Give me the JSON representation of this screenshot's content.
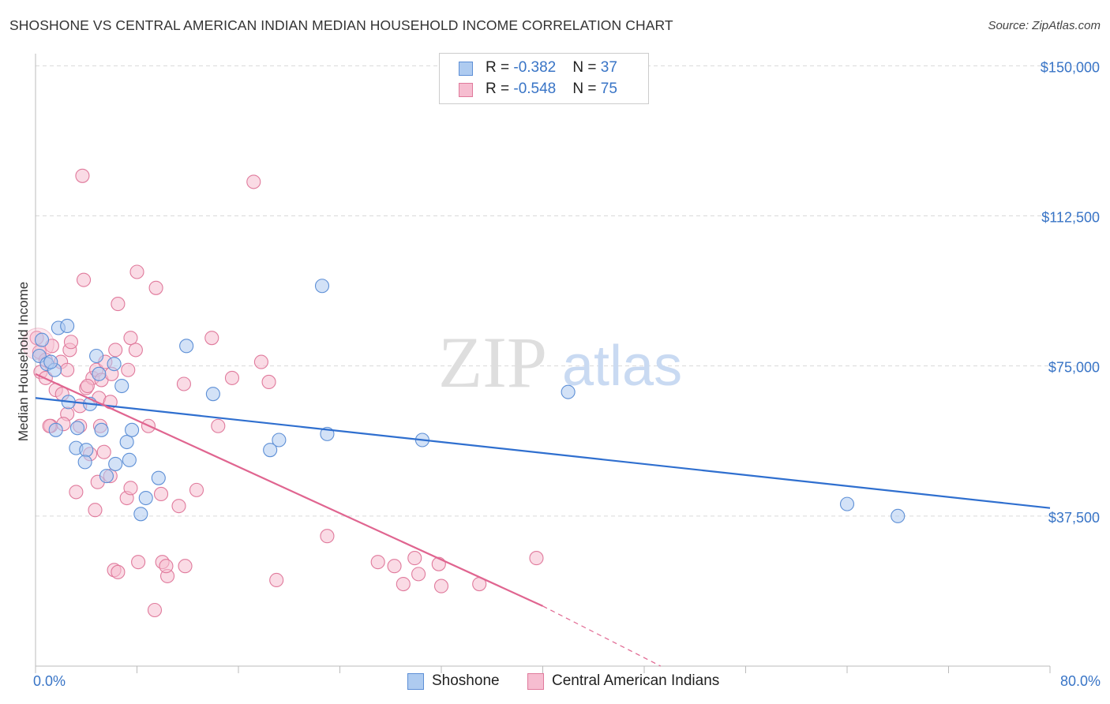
{
  "title": "SHOSHONE VS CENTRAL AMERICAN INDIAN MEDIAN HOUSEHOLD INCOME CORRELATION CHART",
  "source": "Source: ZipAtlas.com",
  "watermark": {
    "zip": "ZIP",
    "atlas": "atlas"
  },
  "legend": {
    "rows": [
      {
        "r_label": "R = ",
        "r_value": "-0.382",
        "n_label": "N = ",
        "n_value": "37"
      },
      {
        "r_label": "R = ",
        "r_value": "-0.548",
        "n_label": "N = ",
        "n_value": "75"
      }
    ]
  },
  "colors": {
    "shoshone_fill": "#aecbf0",
    "shoshone_stroke": "#5d8fd6",
    "shoshone_line": "#2f6fcf",
    "cai_fill": "#f6bdd0",
    "cai_stroke": "#e07a9c",
    "cai_line": "#e06590",
    "grid": "#d9d9d9",
    "tick_text": "#3874c6"
  },
  "chart_data": {
    "type": "scatter",
    "title": "SHOSHONE VS CENTRAL AMERICAN INDIAN MEDIAN HOUSEHOLD INCOME CORRELATION CHART",
    "xlabel": "",
    "ylabel": "Median Household Income",
    "xlim": [
      0,
      80
    ],
    "ylim": [
      0,
      155000
    ],
    "x_tick_labels": [
      "0.0%",
      "80.0%"
    ],
    "y_ticks": [
      37500,
      75000,
      112500,
      150000
    ],
    "y_tick_labels": [
      "$37,500",
      "$75,000",
      "$112,500",
      "$150,000"
    ],
    "grid": true,
    "legend_position": "top-center",
    "series": [
      {
        "name": "Shoshone",
        "r": -0.382,
        "n": 37,
        "trend": {
          "x": [
            0,
            80
          ],
          "y": [
            67000,
            39500
          ]
        },
        "points": [
          [
            0.3,
            77500
          ],
          [
            0.5,
            81500
          ],
          [
            0.9,
            75500
          ],
          [
            1.5,
            74000
          ],
          [
            1.8,
            84500
          ],
          [
            2.5,
            85000
          ],
          [
            4.8,
            77500
          ],
          [
            5.0,
            73000
          ],
          [
            6.2,
            75500
          ],
          [
            6.8,
            70000
          ],
          [
            1.6,
            59000
          ],
          [
            3.3,
            59500
          ],
          [
            5.2,
            59000
          ],
          [
            3.2,
            54500
          ],
          [
            4.0,
            54000
          ],
          [
            7.2,
            56000
          ],
          [
            7.6,
            59000
          ],
          [
            3.9,
            51000
          ],
          [
            6.3,
            50500
          ],
          [
            7.4,
            51500
          ],
          [
            5.6,
            47500
          ],
          [
            9.7,
            47000
          ],
          [
            11.9,
            80000
          ],
          [
            14.0,
            68000
          ],
          [
            18.5,
            54000
          ],
          [
            19.2,
            56500
          ],
          [
            22.6,
            95000
          ],
          [
            23.0,
            58000
          ],
          [
            30.5,
            56500
          ],
          [
            42.0,
            68500
          ],
          [
            8.7,
            42000
          ],
          [
            8.3,
            38000
          ],
          [
            64.0,
            40500
          ],
          [
            68.0,
            37500
          ],
          [
            2.6,
            66000
          ],
          [
            4.3,
            65500
          ],
          [
            1.2,
            76000
          ]
        ]
      },
      {
        "name": "Central American Indians",
        "r": -0.548,
        "n": 75,
        "trend_solid": {
          "x": [
            0,
            40
          ],
          "y": [
            73000,
            15000
          ]
        },
        "trend_dashed": {
          "x": [
            40,
            49.3
          ],
          "y": [
            15000,
            0
          ]
        },
        "points": [
          [
            0.1,
            82000
          ],
          [
            0.3,
            78500
          ],
          [
            0.4,
            73500
          ],
          [
            0.8,
            76500
          ],
          [
            1.3,
            80000
          ],
          [
            1.6,
            69000
          ],
          [
            2.0,
            76000
          ],
          [
            2.5,
            74000
          ],
          [
            2.7,
            79000
          ],
          [
            2.8,
            81000
          ],
          [
            3.5,
            65000
          ],
          [
            4.0,
            69500
          ],
          [
            4.5,
            72000
          ],
          [
            4.8,
            74000
          ],
          [
            5.2,
            71500
          ],
          [
            5.5,
            76000
          ],
          [
            6.3,
            79000
          ],
          [
            7.3,
            74000
          ],
          [
            7.5,
            82000
          ],
          [
            7.9,
            79000
          ],
          [
            5.0,
            67000
          ],
          [
            2.5,
            63000
          ],
          [
            3.5,
            60000
          ],
          [
            1.2,
            60000
          ],
          [
            5.1,
            60000
          ],
          [
            8.9,
            60000
          ],
          [
            2.1,
            68000
          ],
          [
            5.9,
            66000
          ],
          [
            4.9,
            46000
          ],
          [
            5.9,
            47500
          ],
          [
            4.3,
            53000
          ],
          [
            5.4,
            53500
          ],
          [
            3.2,
            43500
          ],
          [
            7.2,
            42000
          ],
          [
            7.5,
            44500
          ],
          [
            9.9,
            43000
          ],
          [
            11.3,
            40000
          ],
          [
            12.7,
            44000
          ],
          [
            4.7,
            39000
          ],
          [
            3.8,
            96500
          ],
          [
            8.0,
            98500
          ],
          [
            9.5,
            94500
          ],
          [
            6.5,
            90500
          ],
          [
            3.7,
            122500
          ],
          [
            17.2,
            121000
          ],
          [
            13.9,
            82000
          ],
          [
            11.7,
            70500
          ],
          [
            14.4,
            60000
          ],
          [
            15.5,
            72000
          ],
          [
            17.8,
            76000
          ],
          [
            18.4,
            71000
          ],
          [
            9.4,
            14000
          ],
          [
            10.0,
            26000
          ],
          [
            10.4,
            22500
          ],
          [
            11.8,
            25000
          ],
          [
            8.1,
            26000
          ],
          [
            6.2,
            24000
          ],
          [
            6.5,
            23500
          ],
          [
            10.3,
            25000
          ],
          [
            19.0,
            21500
          ],
          [
            23.0,
            32500
          ],
          [
            27.0,
            26000
          ],
          [
            28.3,
            25000
          ],
          [
            29.0,
            20500
          ],
          [
            29.9,
            27000
          ],
          [
            30.2,
            23000
          ],
          [
            31.8,
            25500
          ],
          [
            32.0,
            20000
          ],
          [
            35.0,
            20500
          ],
          [
            39.5,
            27000
          ],
          [
            1.1,
            60000
          ],
          [
            2.2,
            60500
          ],
          [
            4.1,
            70000
          ],
          [
            6.0,
            73000
          ],
          [
            0.8,
            72000
          ]
        ]
      }
    ]
  }
}
